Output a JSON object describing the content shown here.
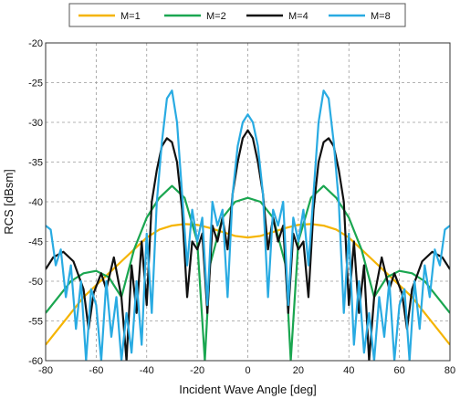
{
  "chart_data": {
    "type": "line",
    "title": "",
    "xlabel": "Incident Wave Angle [deg]",
    "ylabel": "RCS [dBsm]",
    "xlim": [
      -80,
      80
    ],
    "ylim": [
      -60,
      -20
    ],
    "xticks": [
      -80,
      -60,
      -40,
      -20,
      0,
      20,
      40,
      60,
      80
    ],
    "yticks": [
      -20,
      -25,
      -30,
      -35,
      -40,
      -45,
      -50,
      -55,
      -60
    ],
    "grid": "dashed",
    "legend_position": "top-outside",
    "series": [
      {
        "name": "M=1",
        "color": "#f5b400",
        "x": [
          -80,
          -75,
          -70,
          -65,
          -60,
          -55,
          -50,
          -45,
          -40,
          -35,
          -30,
          -25,
          -20,
          -15,
          -10,
          -5,
          0,
          5,
          10,
          15,
          20,
          25,
          30,
          35,
          40,
          45,
          50,
          55,
          60,
          65,
          70,
          75,
          80
        ],
        "y": [
          -58,
          -56,
          -54,
          -52,
          -50.5,
          -49,
          -47.5,
          -46,
          -44.5,
          -43.5,
          -43,
          -42.8,
          -42.9,
          -43.3,
          -43.8,
          -44.3,
          -44.5,
          -44.3,
          -43.8,
          -43.3,
          -42.9,
          -42.8,
          -43,
          -43.5,
          -44.5,
          -46,
          -47.5,
          -49,
          -50.5,
          -52,
          -54,
          -56,
          -58
        ]
      },
      {
        "name": "M=2",
        "color": "#1aa650",
        "x": [
          -80,
          -75,
          -70,
          -65,
          -60,
          -55,
          -50,
          -45,
          -40,
          -35,
          -30,
          -25,
          -20,
          -17,
          -15,
          -10,
          -5,
          0,
          5,
          10,
          15,
          17,
          20,
          25,
          30,
          35,
          40,
          45,
          50,
          55,
          60,
          65,
          70,
          75,
          80
        ],
        "y": [
          -54,
          -52,
          -50,
          -49,
          -48.7,
          -49.5,
          -52,
          -46,
          -42,
          -39.5,
          -38,
          -39.5,
          -45,
          -60,
          -48,
          -42,
          -40,
          -39.5,
          -40,
          -42,
          -48,
          -60,
          -45,
          -39.5,
          -38,
          -39.5,
          -42,
          -46,
          -52,
          -49.5,
          -48.7,
          -49,
          -50,
          -52,
          -54
        ]
      },
      {
        "name": "M=4",
        "color": "#111111",
        "x": [
          -80,
          -77,
          -73,
          -69,
          -65,
          -63,
          -61,
          -58,
          -56,
          -53,
          -50,
          -48,
          -46,
          -44,
          -42,
          -40,
          -38,
          -36,
          -34,
          -32,
          -30,
          -28,
          -26,
          -24,
          -22,
          -20,
          -18,
          -16,
          -14,
          -12,
          -10,
          -8,
          -6,
          -4,
          -2,
          0,
          2,
          4,
          6,
          8,
          10,
          12,
          14,
          16,
          18,
          20,
          22,
          24,
          26,
          28,
          30,
          32,
          34,
          36,
          38,
          40,
          42,
          44,
          46,
          48,
          50,
          53,
          56,
          58,
          61,
          63,
          65,
          69,
          73,
          77,
          80
        ],
        "y": [
          -48.5,
          -47,
          -46.3,
          -47.5,
          -51,
          -56,
          -51.5,
          -49,
          -51,
          -47,
          -52,
          -60,
          -48,
          -54,
          -45,
          -53,
          -40,
          -36,
          -33,
          -32,
          -32.5,
          -35,
          -41,
          -52,
          -45,
          -46,
          -44,
          -54,
          -43,
          -45,
          -42,
          -46,
          -39,
          -35,
          -32,
          -31,
          -32,
          -35,
          -39,
          -46,
          -42,
          -45,
          -43,
          -54,
          -44,
          -46,
          -45,
          -52,
          -41,
          -35,
          -32.5,
          -32,
          -33,
          -36,
          -40,
          -53,
          -45,
          -54,
          -48,
          -60,
          -52,
          -47,
          -51,
          -49,
          -51.5,
          -56,
          -51,
          -47.5,
          -46.3,
          -47,
          -48.5
        ]
      },
      {
        "name": "M=8",
        "color": "#29abe2",
        "x": [
          -80,
          -78,
          -76,
          -74,
          -72,
          -70,
          -68,
          -66,
          -64,
          -62,
          -60,
          -58,
          -56,
          -54,
          -52,
          -50,
          -48,
          -46,
          -44,
          -42,
          -40,
          -38,
          -36,
          -34,
          -32,
          -30,
          -28,
          -26,
          -24,
          -22,
          -20,
          -18,
          -16,
          -14,
          -12,
          -10,
          -8,
          -6,
          -4,
          -2,
          0,
          2,
          4,
          6,
          8,
          10,
          12,
          14,
          16,
          18,
          20,
          22,
          24,
          26,
          28,
          30,
          32,
          34,
          36,
          38,
          40,
          42,
          44,
          46,
          48,
          50,
          52,
          54,
          56,
          58,
          60,
          62,
          64,
          66,
          68,
          70,
          72,
          74,
          76,
          78,
          80
        ],
        "y": [
          -43,
          -43.5,
          -48,
          -46,
          -52,
          -48,
          -56,
          -50,
          -60,
          -51,
          -53,
          -60,
          -50,
          -57,
          -52,
          -60,
          -54,
          -59,
          -50,
          -58,
          -44,
          -54,
          -40,
          -32.5,
          -27,
          -26,
          -30,
          -39,
          -48,
          -41,
          -45,
          -42,
          -53,
          -40,
          -43,
          -41,
          -52,
          -39,
          -33,
          -30,
          -29,
          -30,
          -33,
          -39,
          -52,
          -41,
          -43,
          -40,
          -53,
          -42,
          -45,
          -41,
          -48,
          -39,
          -30,
          -26,
          -27,
          -32.5,
          -40,
          -54,
          -44,
          -58,
          -50,
          -59,
          -54,
          -60,
          -52,
          -57,
          -50,
          -60,
          -53,
          -51,
          -60,
          -50,
          -56,
          -48,
          -52,
          -46,
          -48,
          -43.5,
          -43
        ]
      }
    ]
  }
}
